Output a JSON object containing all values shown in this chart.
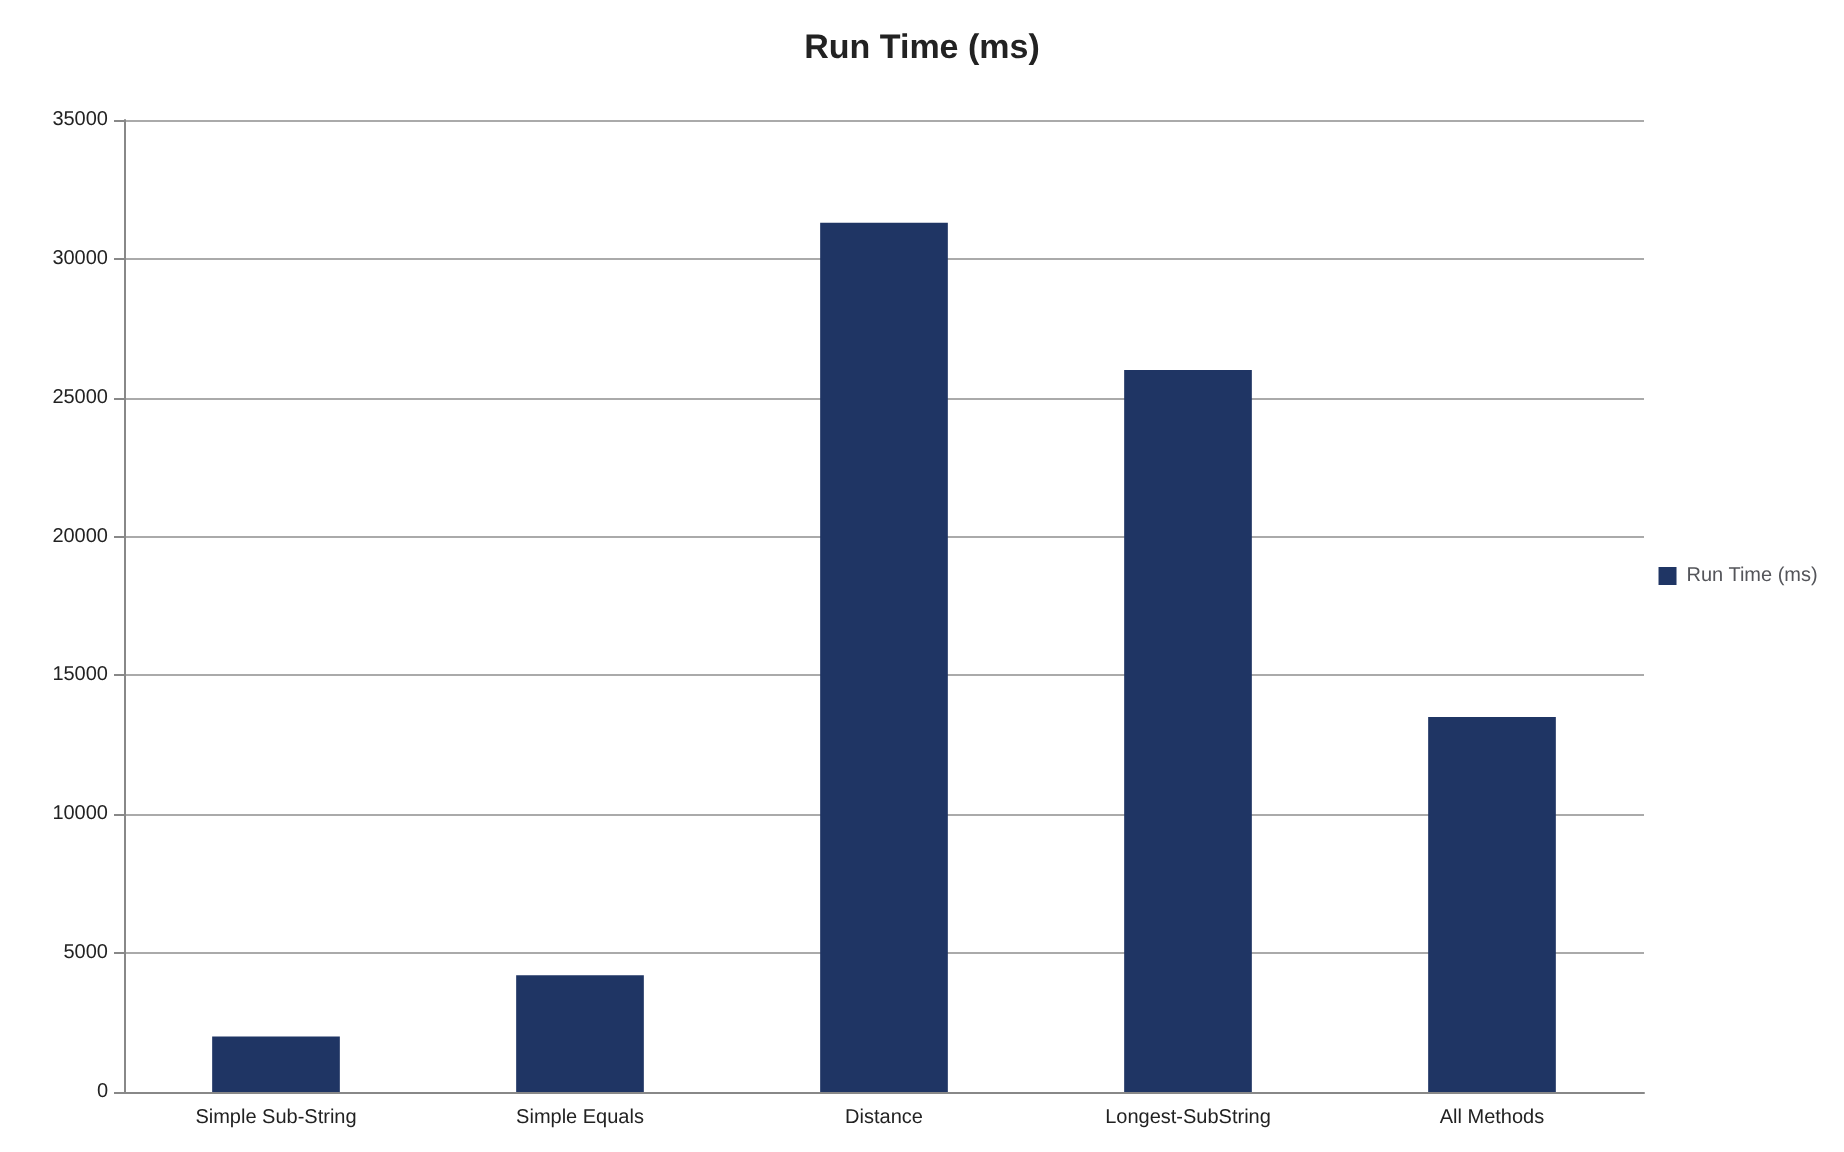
{
  "chart_data": {
    "type": "bar",
    "title": "Run Time (ms)",
    "categories": [
      "Simple Sub-String",
      "Simple Equals",
      "Distance",
      "Longest-SubString",
      "All Methods"
    ],
    "series": [
      {
        "name": "Run Time (ms)",
        "color": "#1f3564",
        "values": [
          2000,
          4200,
          31300,
          26000,
          13500
        ]
      }
    ],
    "ylim": [
      0,
      35000
    ],
    "yticks": [
      0,
      5000,
      10000,
      15000,
      20000,
      25000,
      30000,
      35000
    ],
    "grid": "y",
    "legend": "right"
  }
}
